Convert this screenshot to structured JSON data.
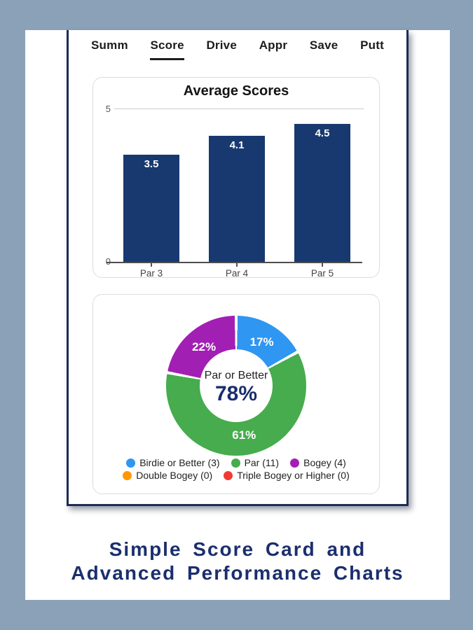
{
  "frame": {
    "background_color": "#8BA1B8",
    "caption": {
      "line1": "Simple Score Card and",
      "line2": "Advanced Performance Charts",
      "color": "#1B2F6D"
    }
  },
  "tabs": [
    {
      "label": "Summ",
      "active": false
    },
    {
      "label": "Score",
      "active": true
    },
    {
      "label": "Drive",
      "active": false
    },
    {
      "label": "Appr",
      "active": false
    },
    {
      "label": "Save",
      "active": false
    },
    {
      "label": "Putt",
      "active": false
    }
  ],
  "bar_chart": {
    "title": "Average Scores",
    "y_top_label": "5",
    "y_bottom_label": "0",
    "y_max": 5,
    "bar_color": "#17396F",
    "bars": [
      {
        "category": "Par 3",
        "value": 3.5,
        "label": "3.5"
      },
      {
        "category": "Par 4",
        "value": 4.1,
        "label": "4.1"
      },
      {
        "category": "Par 5",
        "value": 4.5,
        "label": "4.5"
      }
    ]
  },
  "donut_chart": {
    "center_label": "Par or Better",
    "center_value": "78%",
    "segments": [
      {
        "name": "birdie-or-better",
        "pct": 17,
        "label": "17%",
        "color": "#2F96F1"
      },
      {
        "name": "par",
        "pct": 61,
        "label": "61%",
        "color": "#46AC4D"
      },
      {
        "name": "bogey",
        "pct": 22,
        "label": "22%",
        "color": "#A21FB4"
      }
    ],
    "legend_rows": [
      [
        {
          "label": "Birdie or Better (3)",
          "color": "#2F96F1"
        },
        {
          "label": "Par (11)",
          "color": "#46AC4D"
        },
        {
          "label": "Bogey (4)",
          "color": "#A21FB4"
        }
      ],
      [
        {
          "label": "Double Bogey (0)",
          "color": "#FF9800"
        },
        {
          "label": "Triple Bogey or Higher (0)",
          "color": "#F23B30"
        }
      ]
    ]
  },
  "chart_data": [
    {
      "type": "bar",
      "title": "Average Scores",
      "categories": [
        "Par 3",
        "Par 4",
        "Par 5"
      ],
      "values": [
        3.5,
        4.1,
        4.5
      ],
      "xlabel": "",
      "ylabel": "",
      "ylim": [
        0,
        5
      ],
      "grid": "single top gridline at 5",
      "bar_color": "#17396F",
      "data_labels": [
        "3.5",
        "4.1",
        "4.5"
      ]
    },
    {
      "type": "pie",
      "subtype": "donut",
      "title": "",
      "center_text": [
        "Par or Better",
        "78%"
      ],
      "labels": [
        "Birdie or Better",
        "Par",
        "Bogey",
        "Double Bogey",
        "Triple Bogey or Higher"
      ],
      "counts": [
        3,
        11,
        4,
        0,
        0
      ],
      "percents": [
        17,
        61,
        22,
        0,
        0
      ],
      "colors": [
        "#2F96F1",
        "#46AC4D",
        "#A21FB4",
        "#FF9800",
        "#F23B30"
      ],
      "legend_position": "bottom",
      "start_angle": "12 o'clock, clockwise: blue, green, purple"
    }
  ]
}
